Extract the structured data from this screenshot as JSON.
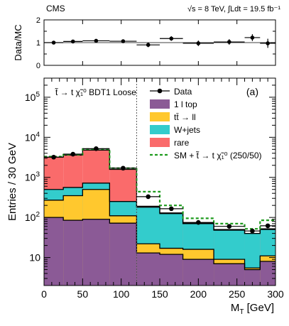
{
  "header": {
    "experiment": "CMS",
    "energy": "√s = 8 TeV, ∫Ldt = 19.5 fb⁻¹"
  },
  "chart_data": [
    {
      "type": "scatter",
      "panel": "ratio",
      "ylabel": "Data/MC",
      "ylim": [
        0,
        2
      ],
      "yticks": [
        "0",
        "0.5",
        "1",
        "1.5",
        "2"
      ],
      "reference_line": 1,
      "x_bins": [
        [
          0,
          25
        ],
        [
          25,
          50
        ],
        [
          50,
          85
        ],
        [
          85,
          120
        ],
        [
          120,
          150
        ],
        [
          150,
          180
        ],
        [
          180,
          220
        ],
        [
          220,
          260
        ],
        [
          260,
          280
        ],
        [
          280,
          300
        ]
      ],
      "values": [
        1.0,
        1.05,
        1.08,
        1.06,
        0.9,
        1.18,
        0.97,
        1.03,
        1.22,
        0.97
      ],
      "errors": [
        0.05,
        0.05,
        0.05,
        0.06,
        0.1,
        0.1,
        0.12,
        0.12,
        0.15,
        0.2
      ]
    },
    {
      "type": "bar",
      "panel": "main",
      "stacked": true,
      "yscale": "log",
      "xlabel": "M_T [GeV]",
      "ylabel": "Entries / 30 GeV",
      "xlim": [
        0,
        300
      ],
      "ylim": [
        2,
        300000
      ],
      "xticks": [
        "0",
        "50",
        "100",
        "150",
        "200",
        "250",
        "300"
      ],
      "yticks_minor_labels": [
        "10"
      ],
      "annotation": "t̃ → t χ̃₁⁰ BDT1 Loose",
      "panel_label": "(a)",
      "cut_line_x": 120,
      "bin_edges": [
        0,
        25,
        50,
        85,
        120,
        150,
        180,
        220,
        260,
        280,
        300
      ],
      "series": [
        {
          "name": "rare",
          "color": "#8B5A96",
          "cumulative": [
            100,
            85,
            90,
            72,
            13,
            12,
            9,
            7,
            5,
            8
          ]
        },
        {
          "name": "W+jets",
          "color": "#FFC82E",
          "cumulative": [
            270,
            350,
            500,
            110,
            22,
            17,
            16,
            9,
            5.5,
            11
          ]
        },
        {
          "name": "tt̄ → ll",
          "color": "#33CCCC",
          "cumulative": [
            500,
            560,
            720,
            250,
            180,
            125,
            70,
            48,
            40,
            50
          ]
        },
        {
          "name": "1 l top",
          "color": "#FA6B6B",
          "cumulative": [
            3200,
            3600,
            4800,
            1580,
            190,
            130,
            72,
            50,
            40,
            52
          ]
        }
      ],
      "signal_total": {
        "name": "SM + t̃ → t χ̃₁⁰ (250/50)",
        "color": "#1E9B1E",
        "values": [
          3300,
          3700,
          5100,
          1700,
          440,
          200,
          95,
          70,
          52,
          85
        ]
      },
      "data": {
        "name": "Data",
        "x": [
          12.5,
          37.5,
          67.5,
          102.5,
          135,
          165,
          200,
          240,
          270,
          290
        ],
        "y": [
          3200,
          3800,
          5200,
          1700,
          330,
          165,
          75,
          60,
          46,
          62
        ]
      },
      "legend_placement": "top-right",
      "legend": [
        "Data",
        "1 l top",
        "tt̄ → ll",
        "W+jets",
        "rare",
        "SM + t̃ → t χ̃₁⁰ (250/50)"
      ]
    }
  ]
}
